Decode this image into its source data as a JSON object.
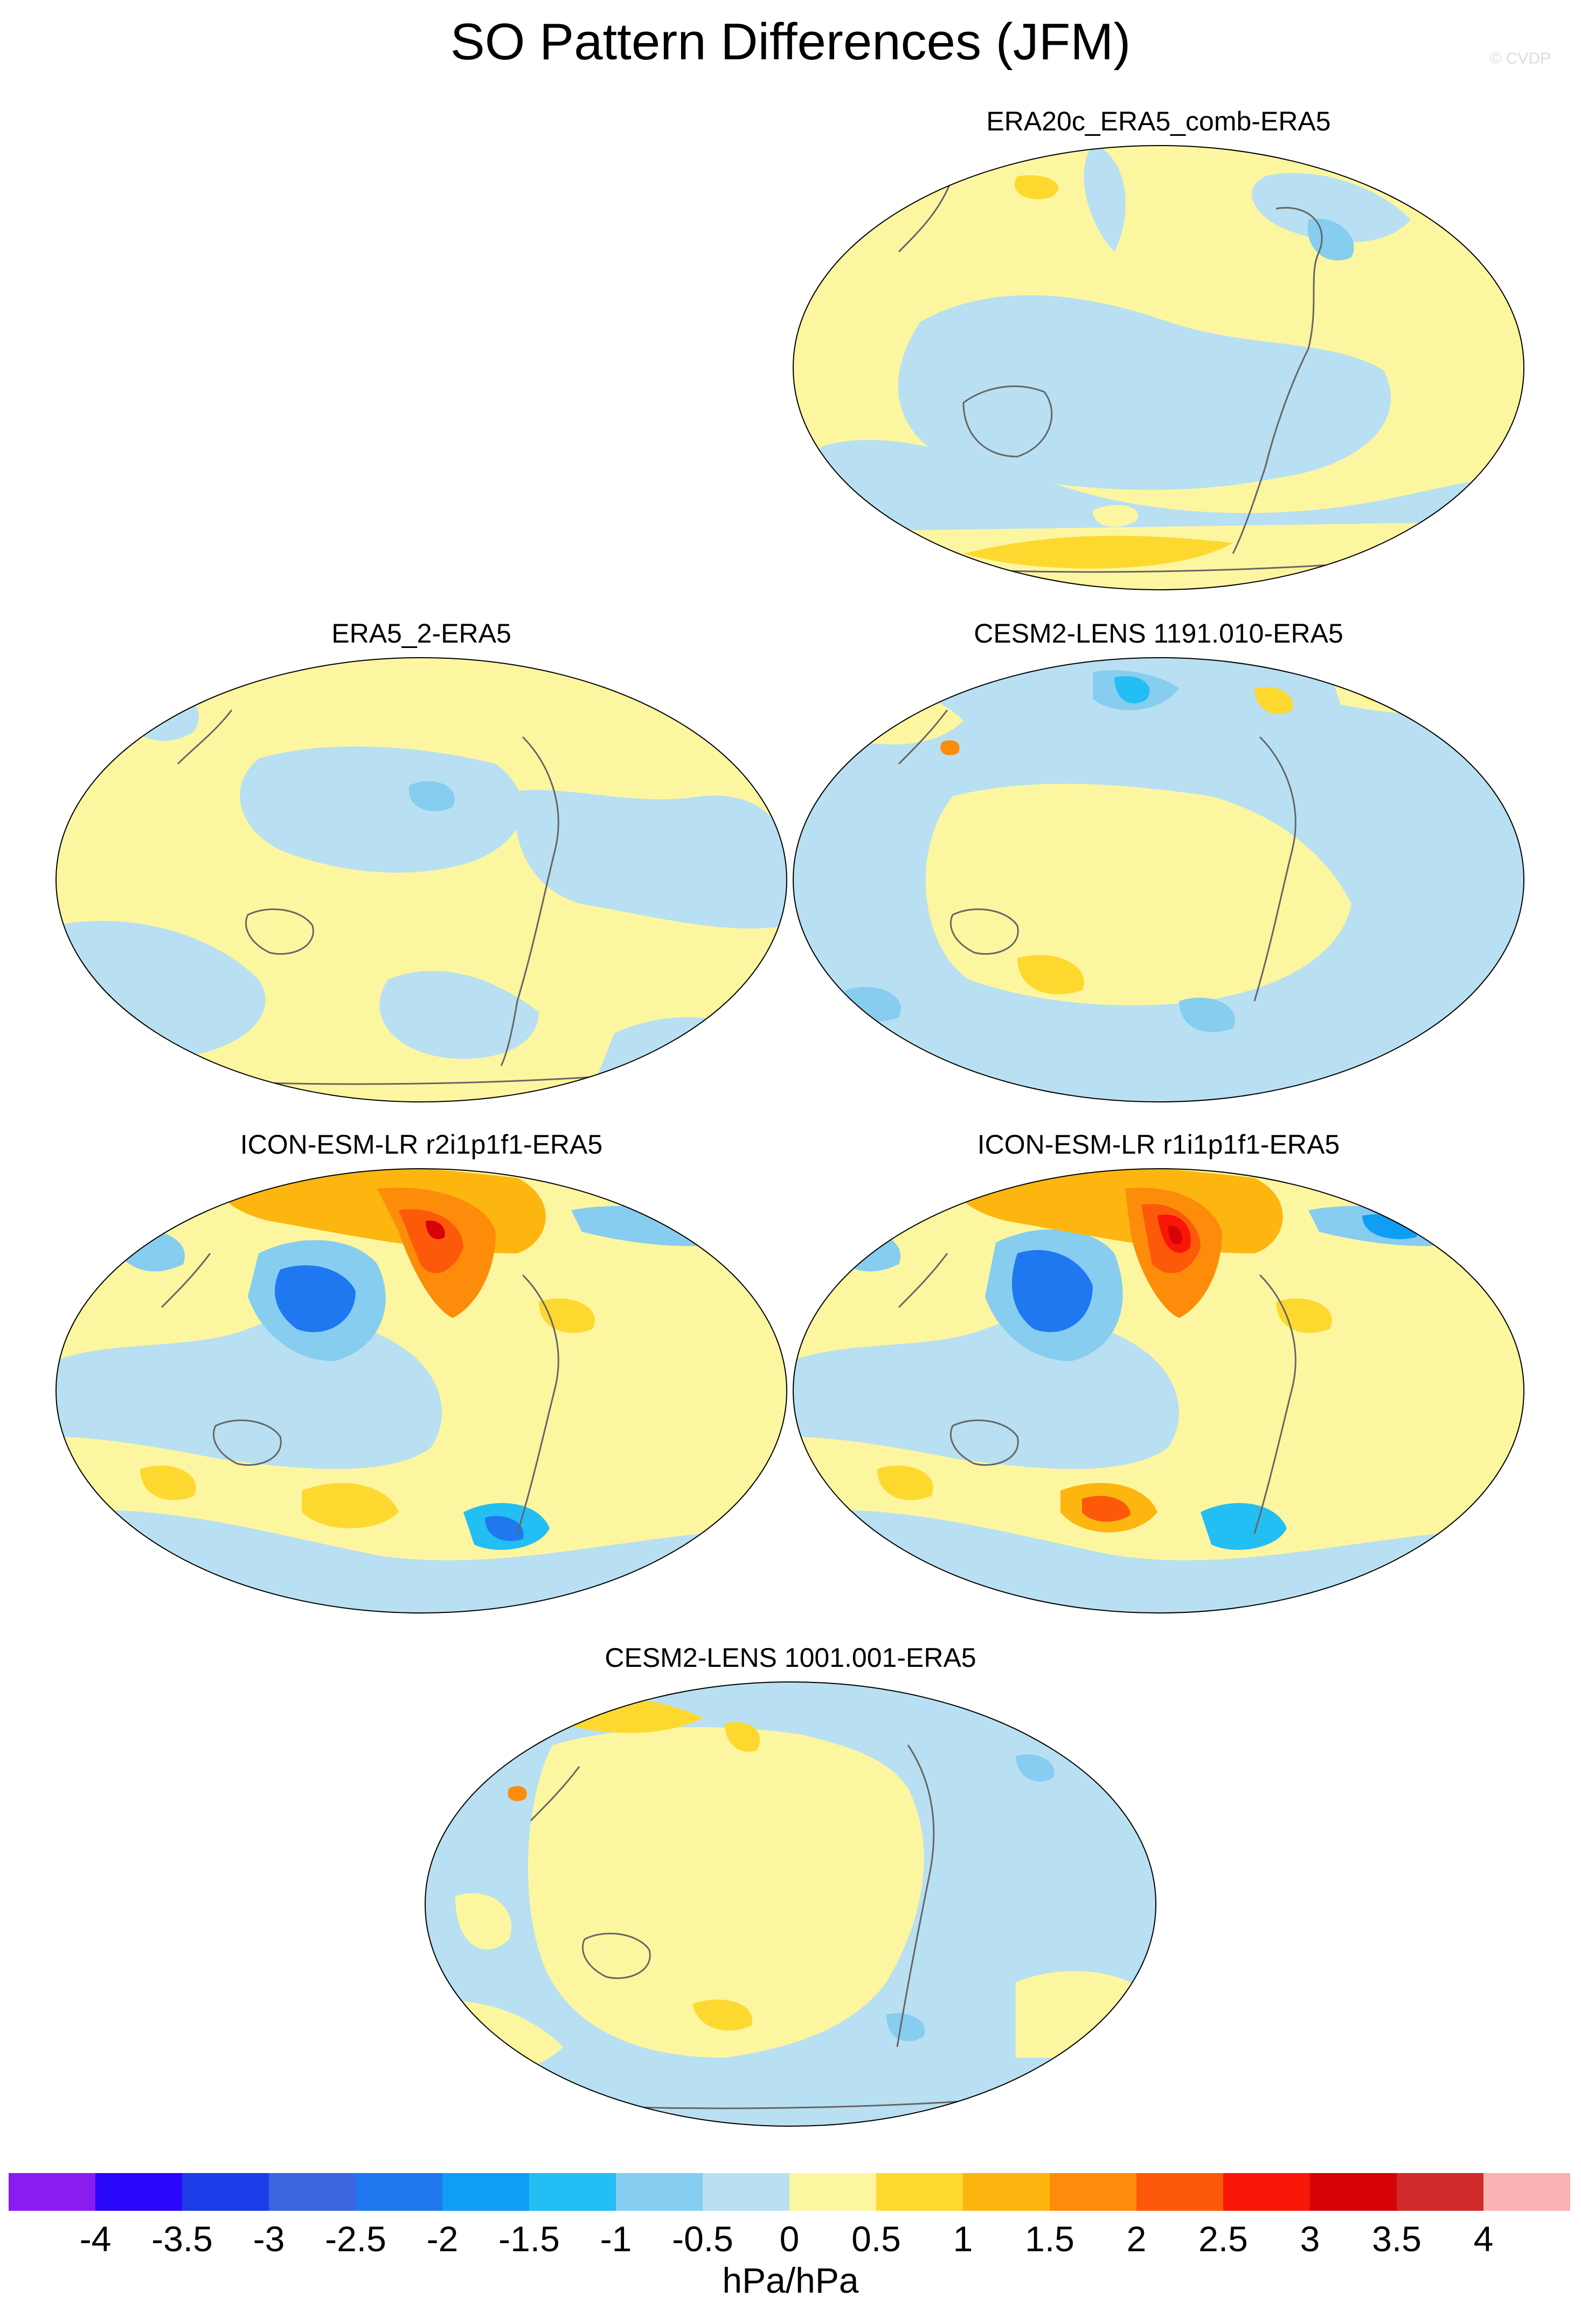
{
  "title": "SO Pattern Differences (JFM)",
  "copyright": "© CVDP",
  "panels": [
    {
      "id": "p1",
      "title": "ERA20c_ERA5_comb-ERA5"
    },
    {
      "id": "p2",
      "title": "ERA5_2-ERA5"
    },
    {
      "id": "p3",
      "title": "CESM2-LENS 1191.010-ERA5"
    },
    {
      "id": "p4",
      "title": "ICON-ESM-LR r2i1p1f1-ERA5"
    },
    {
      "id": "p5",
      "title": "ICON-ESM-LR r1i1p1f1-ERA5"
    },
    {
      "id": "p6",
      "title": "CESM2-LENS 1001.001-ERA5"
    }
  ],
  "colorbar": {
    "units": "hPa/hPa",
    "labels": [
      "-4",
      "-3.5",
      "-3",
      "-2.5",
      "-2",
      "-1.5",
      "-1",
      "-0.5",
      "0",
      "0.5",
      "1",
      "1.5",
      "2",
      "2.5",
      "3",
      "3.5",
      "4"
    ],
    "colors": [
      "#8a1cf0",
      "#2a06fa",
      "#1a3de8",
      "#3a66e0",
      "#1f78f0",
      "#109ef4",
      "#22bef4",
      "#86cdf0",
      "#b8e0f2",
      "#fdf6a0",
      "#fdd930",
      "#fdb510",
      "#fd8c0a",
      "#fc5a0a",
      "#f81608",
      "#d60406",
      "#d02a2a",
      "#fbb2b2"
    ]
  }
}
